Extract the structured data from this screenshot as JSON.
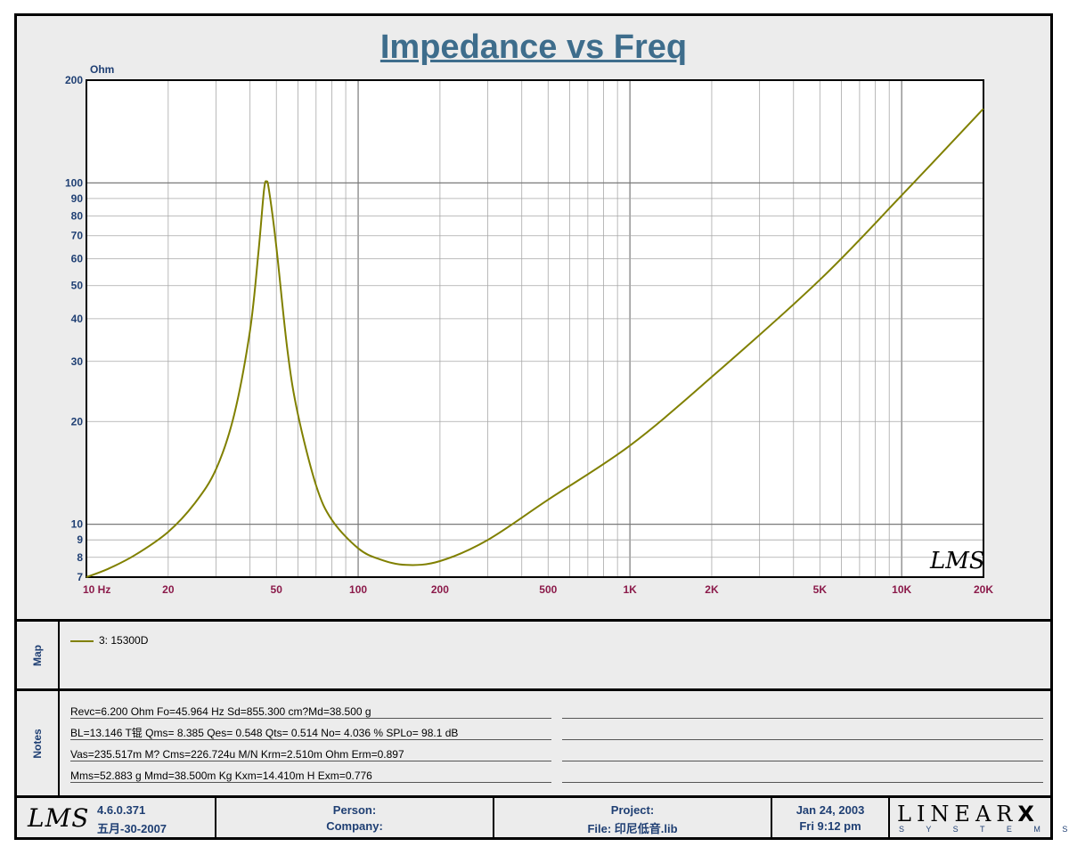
{
  "chart_data": {
    "type": "line",
    "title": "Impedance vs Freq",
    "ylabel": "Ohm",
    "xlabel": "",
    "x_scale": "log",
    "y_scale": "log",
    "xlim": [
      10,
      20000
    ],
    "ylim": [
      7,
      200
    ],
    "x_ticks": [
      {
        "v": 10,
        "label": "10  Hz"
      },
      {
        "v": 20,
        "label": "20"
      },
      {
        "v": 50,
        "label": "50"
      },
      {
        "v": 100,
        "label": "100"
      },
      {
        "v": 200,
        "label": "200"
      },
      {
        "v": 500,
        "label": "500"
      },
      {
        "v": 1000,
        "label": "1K"
      },
      {
        "v": 2000,
        "label": "2K"
      },
      {
        "v": 5000,
        "label": "5K"
      },
      {
        "v": 10000,
        "label": "10K"
      },
      {
        "v": 20000,
        "label": "20K"
      }
    ],
    "y_ticks": [
      {
        "v": 7,
        "label": "7"
      },
      {
        "v": 8,
        "label": "8"
      },
      {
        "v": 9,
        "label": "9"
      },
      {
        "v": 10,
        "label": "10"
      },
      {
        "v": 20,
        "label": "20"
      },
      {
        "v": 30,
        "label": "30"
      },
      {
        "v": 40,
        "label": "40"
      },
      {
        "v": 50,
        "label": "50"
      },
      {
        "v": 60,
        "label": "60"
      },
      {
        "v": 70,
        "label": "70"
      },
      {
        "v": 80,
        "label": "80"
      },
      {
        "v": 90,
        "label": "90"
      },
      {
        "v": 100,
        "label": "100"
      },
      {
        "v": 200,
        "label": "200"
      }
    ],
    "grid": true,
    "series": [
      {
        "name": "3: 15300D",
        "color": "#808000",
        "x": [
          10,
          12,
          15,
          20,
          25,
          30,
          35,
          40,
          43,
          45,
          46,
          47,
          50,
          55,
          60,
          70,
          80,
          100,
          120,
          150,
          200,
          300,
          500,
          1000,
          2000,
          5000,
          10000,
          20000
        ],
        "y": [
          7,
          7.4,
          8.1,
          9.5,
          11.5,
          14.5,
          21,
          37,
          63,
          95,
          101,
          95,
          65,
          32,
          21,
          13,
          10.3,
          8.5,
          7.9,
          7.6,
          7.8,
          9,
          11.8,
          17,
          27,
          52,
          92,
          165
        ]
      }
    ]
  },
  "map": {
    "label": "Map",
    "legend": [
      {
        "name": "3: 15300D",
        "color": "#808000"
      }
    ]
  },
  "notes": {
    "label": "Notes",
    "lines": [
      "Revc=6.200 Ohm  Fo=45.964 Hz  Sd=855.300 cm?Md=38.500 g",
      "BL=13.146 T锟  Qms= 8.385  Qes= 0.548  Qts= 0.514  No= 4.036 %  SPLo= 98.1 dB",
      "Vas=235.517m M? Cms=226.724u M/N  Krm=2.510m Ohm  Erm=0.897",
      "Mms=52.883 g  Mmd=38.500m Kg  Kxm=14.410m H  Exm=0.776"
    ]
  },
  "watermark": "LMS",
  "footer": {
    "logo": "LMS",
    "version": "4.6.0.371",
    "version_date": "五月-30-2007",
    "person": "Person:",
    "company": "Company:",
    "project": "Project:",
    "file": "File: 印尼低音.lib",
    "date": "Jan 24, 2003",
    "time": "Fri  9:12 pm",
    "brand": "LINEAR",
    "brand_x": "X",
    "brand_sub": "S Y S T E M S"
  }
}
